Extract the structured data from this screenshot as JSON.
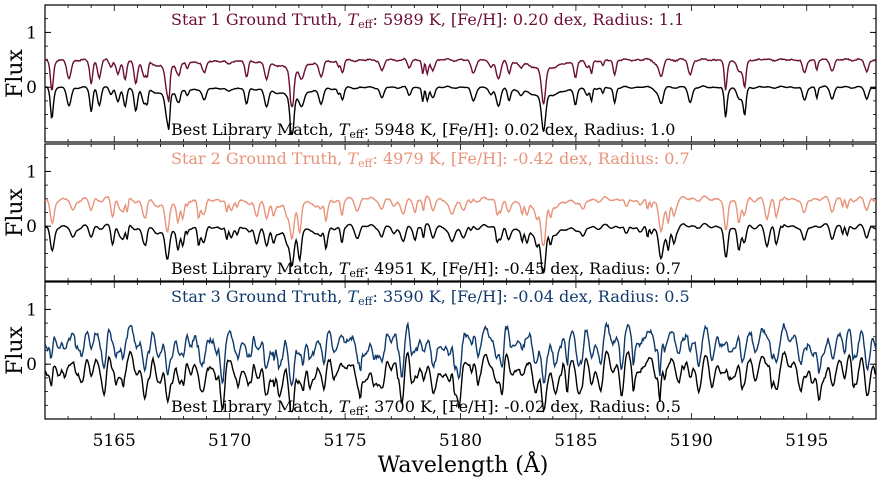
{
  "chart_data": {
    "type": "line",
    "xlabel": "Wavelength (Å)",
    "ylabel": "Flux",
    "xlim": [
      5162,
      5198
    ],
    "ylim": [
      -1.0,
      1.5
    ],
    "x_ticks": [
      5165,
      5170,
      5175,
      5180,
      5185,
      5190,
      5195
    ],
    "y_ticks": [
      0,
      1
    ],
    "grid": false,
    "panels": [
      {
        "ground_truth": {
          "name_prefix": "Star 1 Ground Truth, ",
          "teff_symbol": "T",
          "teff_subscript": "eff",
          "params": ": 5989 K, [Fe/H]: 0.20 dex, Radius: 1.1",
          "teff_k": 5989,
          "feh_dex": 0.2,
          "radius": 1.1,
          "color": "#6b0d35",
          "offset": 1.0
        },
        "library_match": {
          "name_prefix": "Best Library Match, ",
          "teff_symbol": "T",
          "teff_subscript": "eff",
          "params": ": 5948 K, [Fe/H]: 0.02 dex, Radius: 1.0",
          "teff_k": 5948,
          "feh_dex": 0.02,
          "radius": 1.0,
          "color": "#000000",
          "offset": 0.5
        }
      },
      {
        "ground_truth": {
          "name_prefix": "Star 2 Ground Truth, ",
          "teff_symbol": "T",
          "teff_subscript": "eff",
          "params": ": 4979 K, [Fe/H]: -0.42 dex, Radius: 0.7",
          "teff_k": 4979,
          "feh_dex": -0.42,
          "radius": 0.7,
          "color": "#e8937a",
          "offset": 1.0
        },
        "library_match": {
          "name_prefix": "Best Library Match, ",
          "teff_symbol": "T",
          "teff_subscript": "eff",
          "params": ": 4951 K, [Fe/H]: -0.45 dex, Radius: 0.7",
          "teff_k": 4951,
          "feh_dex": -0.45,
          "radius": 0.7,
          "color": "#000000",
          "offset": 0.5
        }
      },
      {
        "ground_truth": {
          "name_prefix": "Star 3 Ground Truth, ",
          "teff_symbol": "T",
          "teff_subscript": "eff",
          "params": ": 3590 K, [Fe/H]: -0.04 dex, Radius: 0.5",
          "teff_k": 3590,
          "feh_dex": -0.04,
          "radius": 0.5,
          "color": "#0f3a6b",
          "offset": 1.0
        },
        "library_match": {
          "name_prefix": "Best Library Match, ",
          "teff_symbol": "T",
          "teff_subscript": "eff",
          "params": ": 3700 K, [Fe/H]: -0.02 dex, Radius: 0.5",
          "teff_k": 3700,
          "feh_dex": -0.02,
          "radius": 0.5,
          "color": "#000000",
          "offset": 0.5
        }
      }
    ],
    "absorption_lines": [
      {
        "x": 5167.3,
        "depth": 0.45
      },
      {
        "x": 5172.7,
        "depth": 0.55
      },
      {
        "x": 5183.6,
        "depth": 0.6
      },
      {
        "x": 5162.3,
        "depth": 0.3
      },
      {
        "x": 5164.0,
        "depth": 0.2
      },
      {
        "x": 5166.3,
        "depth": 0.25
      },
      {
        "x": 5168.9,
        "depth": 0.22
      },
      {
        "x": 5171.6,
        "depth": 0.3
      },
      {
        "x": 5176.6,
        "depth": 0.2
      },
      {
        "x": 5178.8,
        "depth": 0.18
      },
      {
        "x": 5188.7,
        "depth": 0.28
      },
      {
        "x": 5191.5,
        "depth": 0.25
      },
      {
        "x": 5192.3,
        "depth": 0.3
      },
      {
        "x": 5194.9,
        "depth": 0.25
      },
      {
        "x": 5196.1,
        "depth": 0.2
      },
      {
        "x": 5197.6,
        "depth": 0.22
      }
    ]
  }
}
